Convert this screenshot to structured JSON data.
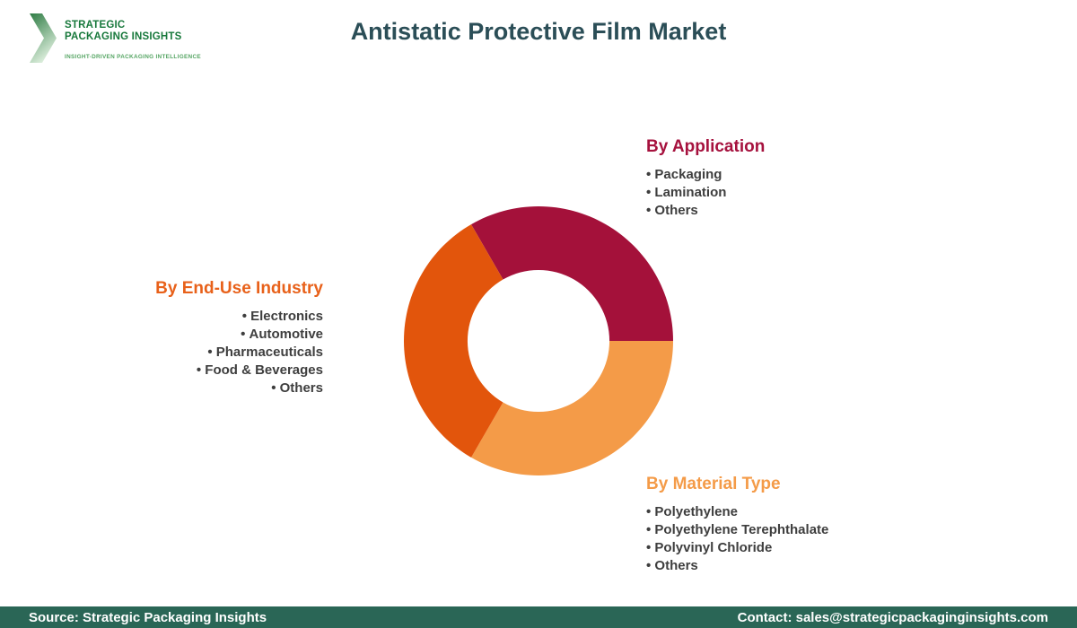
{
  "brand": {
    "name_line1": "STRATEGIC",
    "name_line2": "PACKAGING INSIGHTS",
    "tagline": "INSIGHT-DRIVEN PACKAGING INTELLIGENCE",
    "text_color": "#17783B",
    "tagline_color": "#55A563",
    "chevron_green_dark": "#2E7C44",
    "chevron_green_light": "#DCEEDC"
  },
  "header": {
    "title": "Antistatic Protective Film Market",
    "title_color": "#2B4E57"
  },
  "sections": {
    "application": {
      "heading": "By Application",
      "color": "#A6123E",
      "items": [
        "Packaging",
        "Lamination",
        "Others"
      ]
    },
    "end_use": {
      "heading": "By End-Use Industry",
      "color": "#E8611A",
      "items": [
        "Electronics",
        "Automotive",
        "Pharmaceuticals",
        "Food & Beverages",
        "Others"
      ]
    },
    "material": {
      "heading": "By Material Type",
      "color": "#F49B48",
      "items": [
        "Polyethylene",
        "Polyethylene Terephthalate",
        "Polyvinyl Chloride",
        "Others"
      ]
    }
  },
  "chart_data": {
    "type": "pie",
    "subtype": "donut",
    "title": "Antistatic Protective Film Market",
    "legend": "none",
    "data_labels": "none",
    "inner_radius_ratio": 0.527,
    "start_angle_deg": 120,
    "direction": "clockwise",
    "segments": [
      {
        "key": "application",
        "label": "By Application",
        "color": "#A4113A",
        "sweep_deg": 120,
        "value_pct": 33.3
      },
      {
        "key": "material",
        "label": "By Material Type",
        "color": "#F49B48",
        "sweep_deg": 120,
        "value_pct": 33.3
      },
      {
        "key": "end-use",
        "label": "By End-Use Industry",
        "color": "#E2550C",
        "sweep_deg": 120,
        "value_pct": 33.3
      }
    ]
  },
  "footer": {
    "source": "Source: Strategic Packaging Insights",
    "contact": "Contact: sales@strategicpackaginginsights.com",
    "bg_color": "#2A6656"
  }
}
